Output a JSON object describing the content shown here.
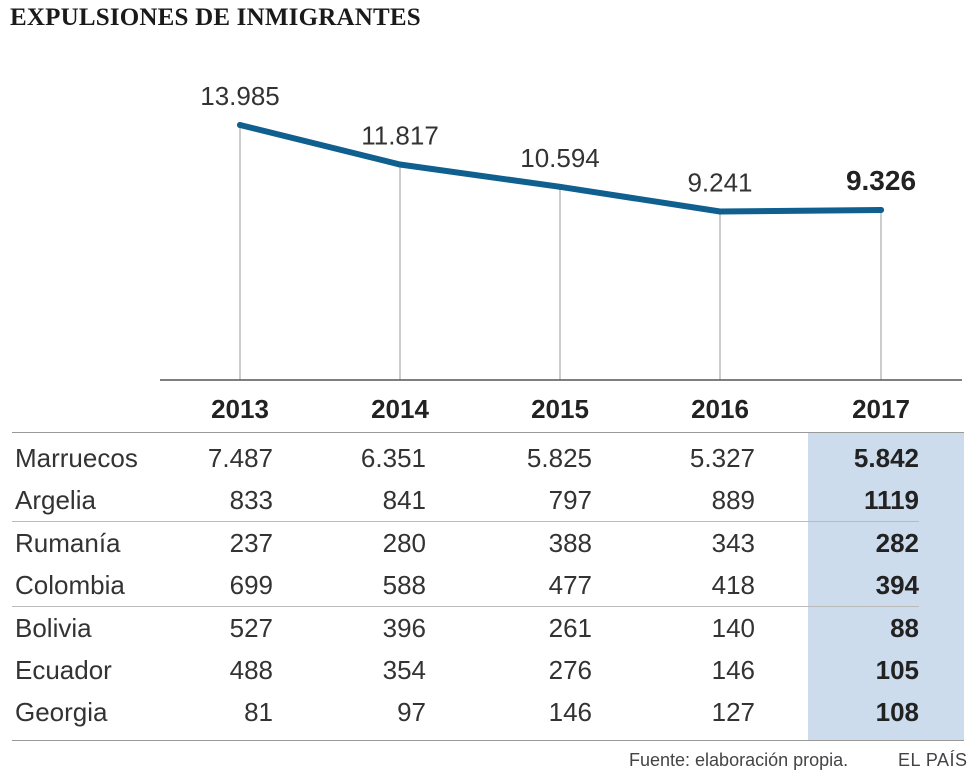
{
  "title": "EXPULSIONES DE INMIGRANTES",
  "chart_data": {
    "type": "line",
    "title": "EXPULSIONES DE INMIGRANTES",
    "x": [
      "2013",
      "2014",
      "2015",
      "2016",
      "2017"
    ],
    "values": [
      13985,
      11817,
      10594,
      9241,
      9326
    ],
    "value_labels": [
      "13.985",
      "11.817",
      "10.594",
      "9.241",
      "9.326"
    ],
    "ylim": [
      0,
      15000
    ],
    "grid": "vertical drop lines",
    "line_color": "#0f5f8f"
  },
  "table": {
    "years": [
      "2013",
      "2014",
      "2015",
      "2016",
      "2017"
    ],
    "highlight_color": "#cddced",
    "rows": [
      {
        "country": "Marruecos",
        "values": [
          "7.487",
          "6.351",
          "5.825",
          "5.327",
          "5.842"
        ],
        "group_end": false
      },
      {
        "country": "Argelia",
        "values": [
          "833",
          "841",
          "797",
          "889",
          "1119"
        ],
        "group_end": true
      },
      {
        "country": "Rumanía",
        "values": [
          "237",
          "280",
          "388",
          "343",
          "282"
        ],
        "group_end": false
      },
      {
        "country": "Colombia",
        "values": [
          "699",
          "588",
          "477",
          "418",
          "394"
        ],
        "group_end": true
      },
      {
        "country": "Bolivia",
        "values": [
          "527",
          "396",
          "261",
          "140",
          "88"
        ],
        "group_end": false
      },
      {
        "country": "Ecuador",
        "values": [
          "488",
          "354",
          "276",
          "146",
          "105"
        ],
        "group_end": false
      },
      {
        "country": "Georgia",
        "values": [
          "81",
          "97",
          "146",
          "127",
          "108"
        ],
        "group_end": false
      }
    ]
  },
  "footer": {
    "source": "Fuente: elaboración propia.",
    "brand": "EL PAÍS"
  }
}
